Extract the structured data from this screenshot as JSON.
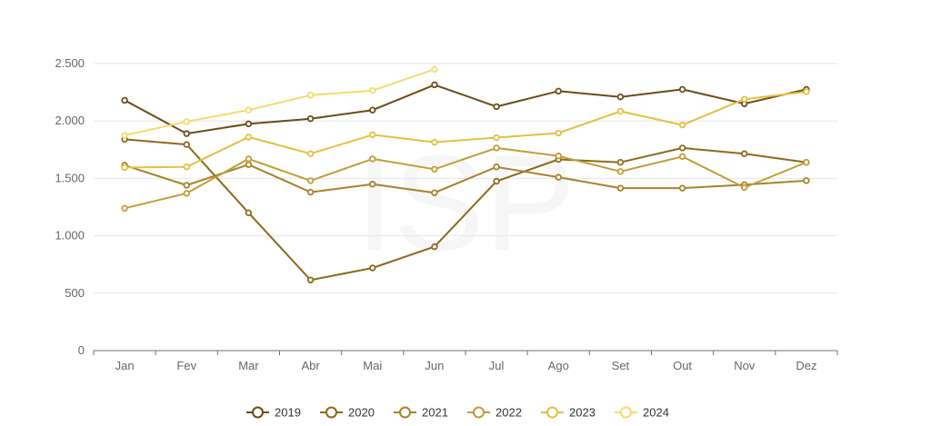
{
  "watermark": "ISP",
  "chart_data": {
    "type": "line",
    "categories": [
      "Jan",
      "Fev",
      "Mar",
      "Abr",
      "Mai",
      "Jun",
      "Jul",
      "Ago",
      "Set",
      "Out",
      "Nov",
      "Dez"
    ],
    "ylim": [
      0,
      2500
    ],
    "yticks": [
      0,
      500,
      1000,
      1500,
      2000,
      2500
    ],
    "ytick_labels": [
      "0",
      "500",
      "1.000",
      "1.500",
      "2.000",
      "2.500"
    ],
    "grid": true,
    "legend_position": "bottom",
    "series": [
      {
        "name": "2019",
        "color": "#6b4c14",
        "values": [
          2180,
          1890,
          1975,
          2020,
          2095,
          2315,
          2125,
          2260,
          2210,
          2275,
          2150,
          2275
        ]
      },
      {
        "name": "2020",
        "color": "#8c6a1c",
        "values": [
          1840,
          1795,
          1200,
          615,
          720,
          905,
          1475,
          1665,
          1640,
          1765,
          1715,
          1640
        ]
      },
      {
        "name": "2021",
        "color": "#a8822a",
        "values": [
          1615,
          1440,
          1620,
          1380,
          1450,
          1375,
          1600,
          1510,
          1415,
          1415,
          1445,
          1480
        ]
      },
      {
        "name": "2022",
        "color": "#c29d36",
        "values": [
          1240,
          1370,
          1670,
          1480,
          1670,
          1580,
          1765,
          1695,
          1560,
          1690,
          1420,
          1640
        ]
      },
      {
        "name": "2023",
        "color": "#e4c040",
        "values": [
          1595,
          1600,
          1860,
          1715,
          1880,
          1815,
          1855,
          1895,
          2085,
          1965,
          2190,
          2255
        ]
      },
      {
        "name": "2024",
        "color": "#f3dc6c",
        "values": [
          1875,
          1995,
          2095,
          2225,
          2265,
          2450,
          null,
          null,
          null,
          null,
          null,
          null
        ]
      }
    ]
  }
}
